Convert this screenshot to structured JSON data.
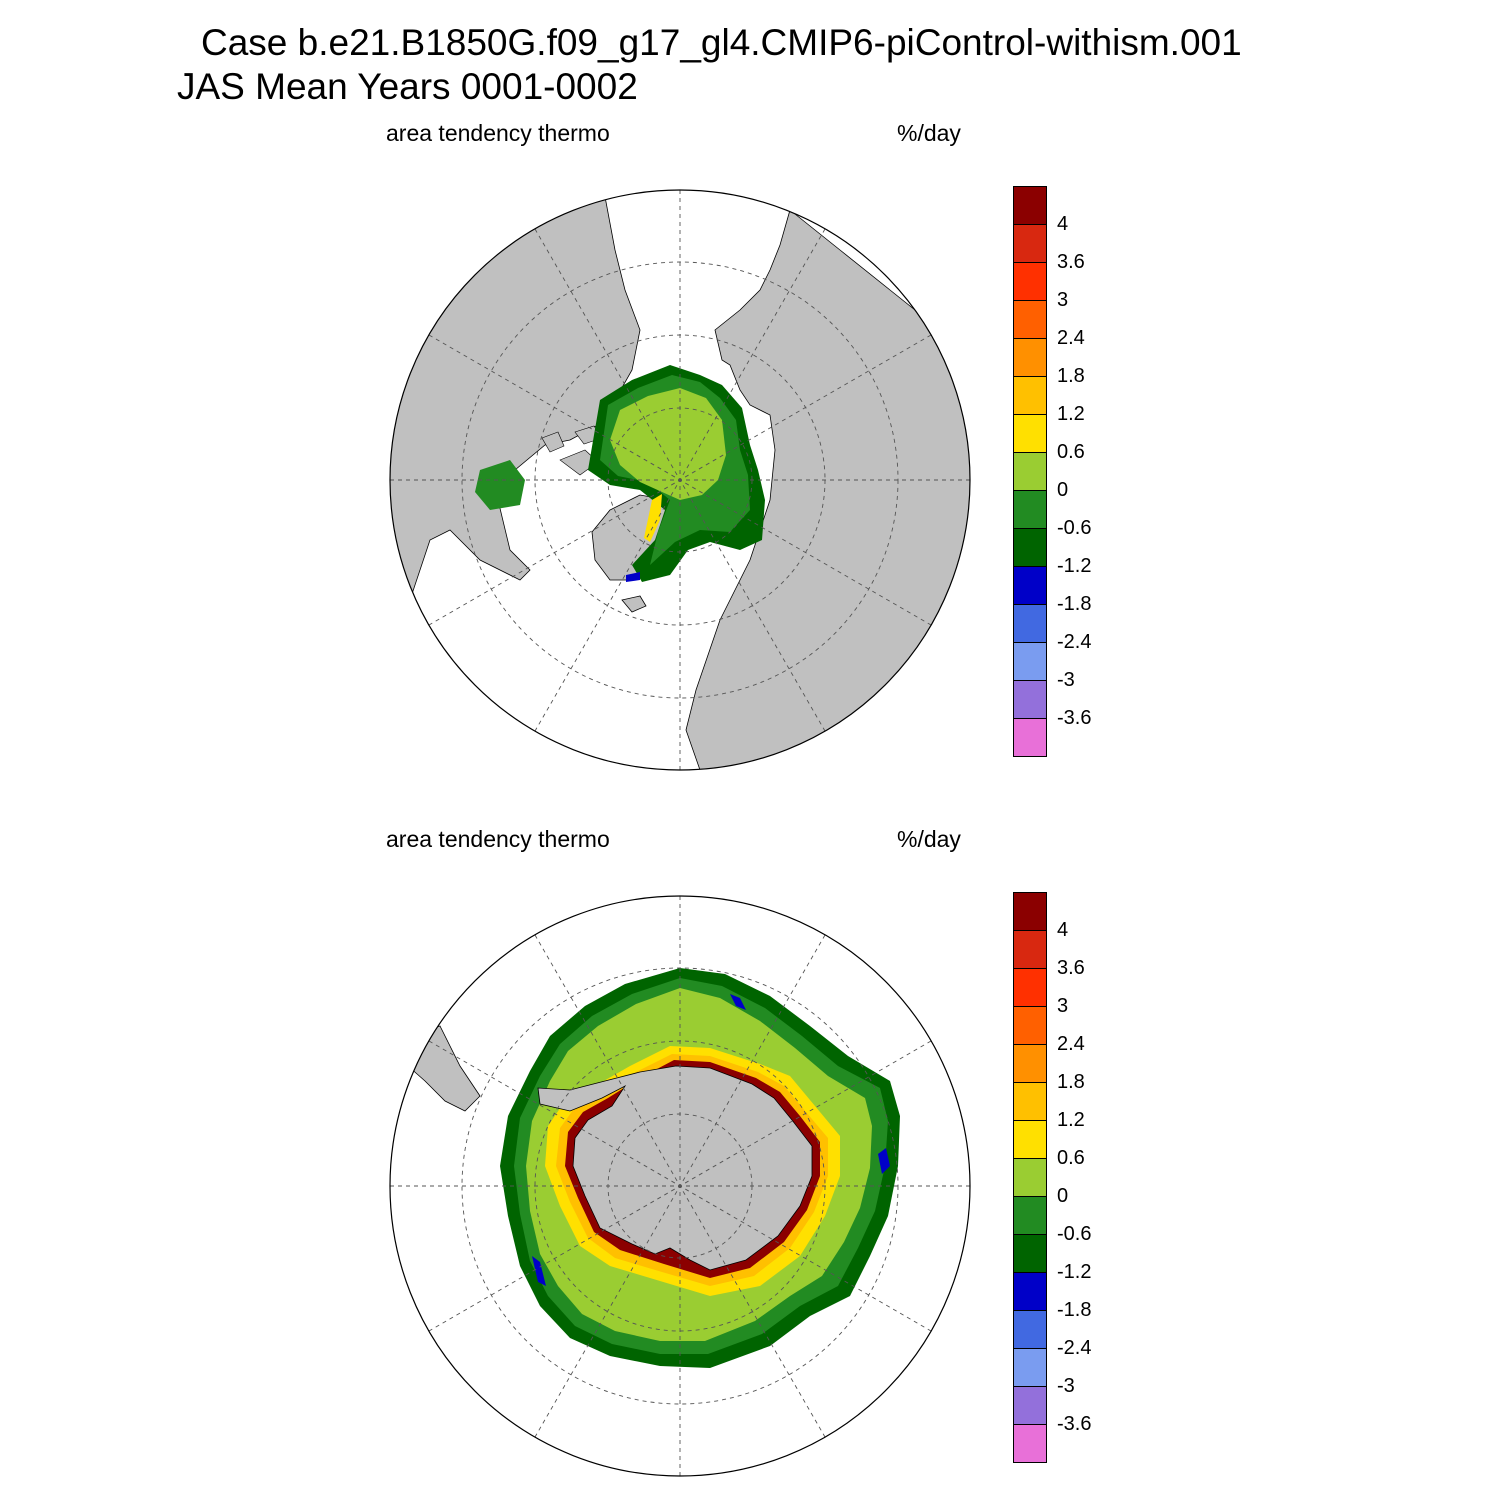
{
  "header": {
    "title_line1": "Case b.e21.B1850G.f09_g17_gl4.CMIP6-piControl-withism.001",
    "title_line2": "JAS Mean   Years 0001-0002"
  },
  "colors": {
    "land": "#c0c0c0",
    "ocean_background": "#ffffff",
    "grid_line": "#555555",
    "levels": [
      "#e870d8",
      "#9370db",
      "#7a9cf0",
      "#4169e1",
      "#0000c8",
      "#006400",
      "#228b22",
      "#9acd32",
      "#ffe000",
      "#ffc000",
      "#ff9000",
      "#ff6000",
      "#ff3000",
      "#d82810",
      "#8b0000"
    ]
  },
  "colorbar": {
    "tick_labels": [
      "4",
      "3.6",
      "3",
      "2.4",
      "1.8",
      "1.2",
      "0.6",
      "0",
      "-0.6",
      "-1.2",
      "-1.8",
      "-2.4",
      "-3",
      "-3.6"
    ]
  },
  "panels": [
    {
      "id": "north",
      "variable_label": "area tendency thermo",
      "units_label": "%/day",
      "projection": "north polar stereographic"
    },
    {
      "id": "south",
      "variable_label": "area tendency thermo",
      "units_label": "%/day",
      "projection": "south polar stereographic"
    }
  ]
}
